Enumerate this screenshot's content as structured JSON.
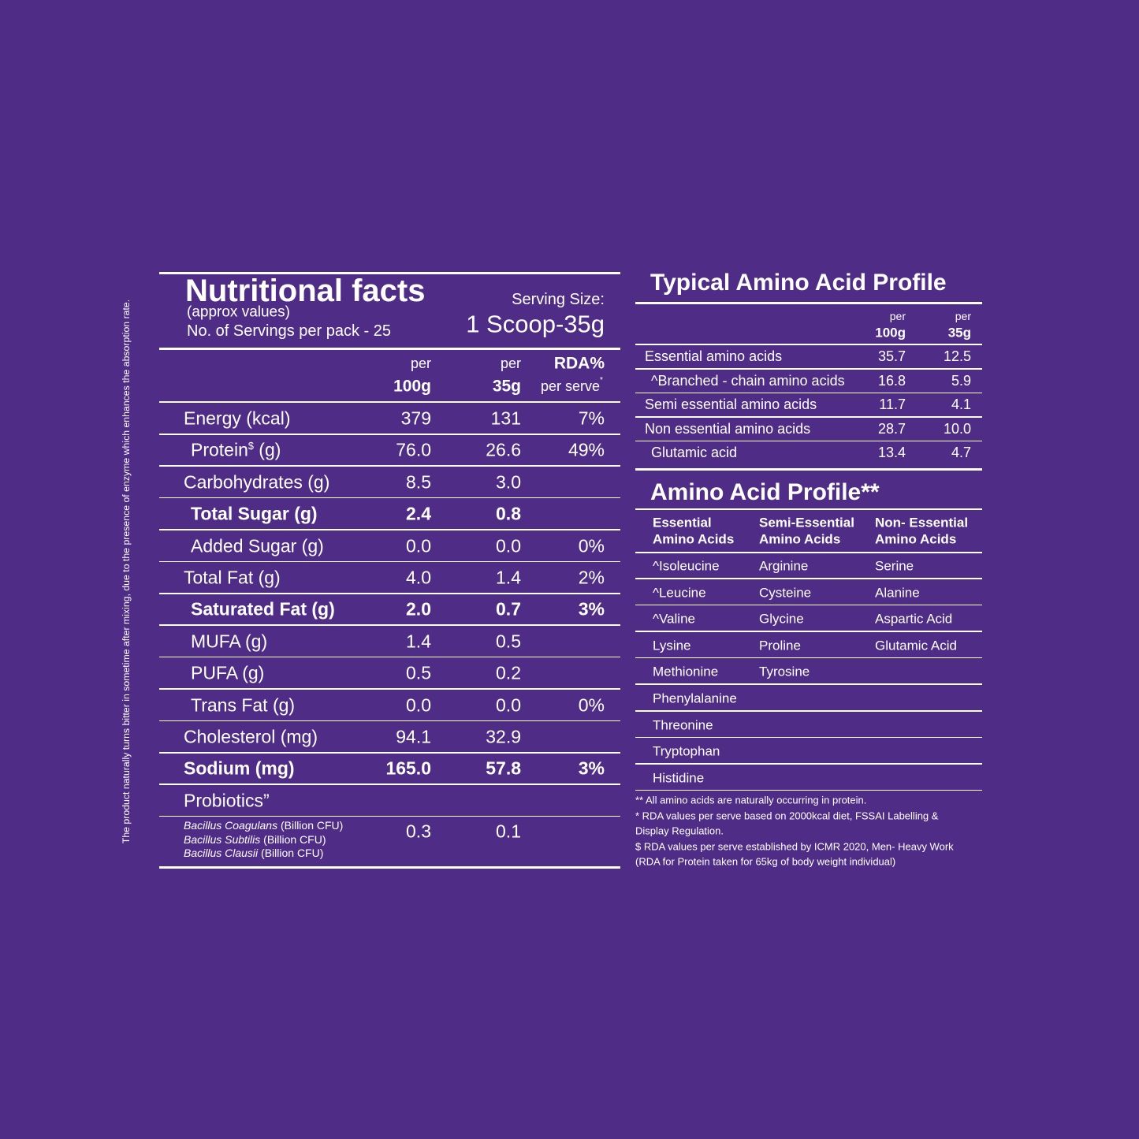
{
  "side_note": "The product naturally turns bitter in sometime after mixing, due to the presence of enzyme which enhances the absorption rate.",
  "nutrition": {
    "title": "Nutritional facts",
    "subtitle": "(approx values)",
    "servings": "No. of Servings per pack - 25",
    "serving_size_label": "Serving Size:",
    "serving_size": "1 Scoop-35g",
    "columns": [
      {
        "top": "per",
        "bottom": "100g"
      },
      {
        "top": "per",
        "bottom": "35g"
      },
      {
        "top": "RDA%",
        "bottom": "per serve",
        "sup": "*"
      }
    ],
    "rows": [
      {
        "label": "Energy (kcal)",
        "values": [
          "379",
          "131",
          "7%"
        ]
      },
      {
        "label": "Protein",
        "sup": "$",
        "unit": " (g)",
        "values": [
          "76.0",
          "26.6",
          "49%"
        ]
      },
      {
        "label": "Carbohydrates (g)",
        "values": [
          "8.5",
          "3.0",
          null
        ]
      },
      {
        "label": "Total Sugar (g)",
        "values": [
          "2.4",
          "0.8",
          null
        ]
      },
      {
        "label": "Added Sugar (g)",
        "values": [
          "0.0",
          "0.0",
          "0%"
        ]
      },
      {
        "label": "Total Fat (g)",
        "values": [
          "4.0",
          "1.4",
          "2%"
        ]
      },
      {
        "label": "Saturated Fat (g)",
        "values": [
          "2.0",
          "0.7",
          "3%"
        ]
      },
      {
        "label": "MUFA (g)",
        "values": [
          "1.4",
          "0.5",
          null
        ]
      },
      {
        "label": "PUFA (g)",
        "values": [
          "0.5",
          "0.2",
          null
        ]
      },
      {
        "label": "Trans Fat (g)",
        "values": [
          "0.0",
          "0.0",
          "0%"
        ]
      },
      {
        "label": "Cholesterol (mg)",
        "values": [
          "94.1",
          "32.9",
          null
        ]
      },
      {
        "label": "Sodium (mg)",
        "values": [
          "165.0",
          "57.8",
          "3%"
        ]
      },
      {
        "label": "Probiotics”",
        "values": [
          null,
          null,
          null
        ]
      }
    ],
    "probiotics": {
      "strains": [
        {
          "name": "Bacillus Coagulans",
          "unit": " (Billion CFU)"
        },
        {
          "name": "Bacillus Subtilis",
          "unit": " (Billion CFU)"
        },
        {
          "name": "Bacillus Clausii",
          "unit": " (Billion CFU)"
        }
      ],
      "values": [
        "0.3",
        "0.1"
      ]
    }
  },
  "typical": {
    "title": "Typical Amino Acid Profile",
    "columns": [
      {
        "top": "per",
        "bottom": "100g"
      },
      {
        "top": "per",
        "bottom": "35g"
      }
    ],
    "rows": [
      {
        "label": "Essential amino acids",
        "values": [
          "35.7",
          "12.5"
        ]
      },
      {
        "label": "^Branched - chain amino acids",
        "values": [
          "16.8",
          "5.9"
        ]
      },
      {
        "label": "Semi essential amino acids",
        "values": [
          "11.7",
          "4.1"
        ]
      },
      {
        "label": "Non essential amino acids",
        "values": [
          "28.7",
          "10.0"
        ]
      },
      {
        "label": "Glutamic acid",
        "values": [
          "13.4",
          "4.7"
        ]
      }
    ]
  },
  "profile": {
    "title": "Amino Acid Profile**",
    "columns": [
      {
        "header": [
          "Essential",
          "Amino Acids"
        ],
        "items": [
          "^Isoleucine",
          "^Leucine",
          "^Valine",
          "Lysine",
          "Methionine",
          "Phenylalanine",
          "Threonine",
          "Tryptophan",
          "Histidine"
        ]
      },
      {
        "header": [
          "Semi-Essential",
          "Amino Acids"
        ],
        "items": [
          "Arginine",
          "Cysteine",
          "Glycine",
          "Proline",
          "Tyrosine"
        ]
      },
      {
        "header": [
          "Non- Essential",
          "Amino Acids"
        ],
        "items": [
          "Serine",
          "Alanine",
          "Aspartic Acid",
          "Glutamic Acid"
        ]
      }
    ]
  },
  "footnotes": [
    "** All amino acids are naturally occurring in protein.",
    "* RDA values per serve based on 2000kcal diet, FSSAI Labelling &",
    "Display Regulation.",
    "$ RDA values per serve established by ICMR 2020, Men- Heavy Work",
    "(RDA for Protein taken for 65kg of body weight individual)"
  ]
}
